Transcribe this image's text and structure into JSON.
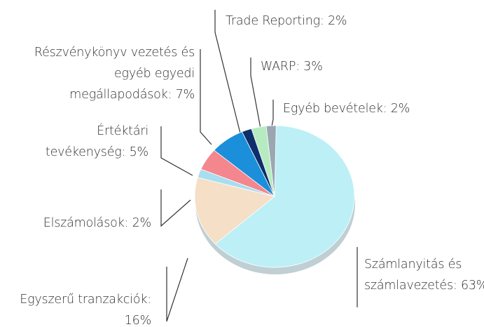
{
  "chart_data": {
    "type": "pie",
    "labels": [
      "Számlanyitás és számlavezetés: 63%",
      "Egyszerű tranzakciók: 16%",
      "Elszámolások: 2%",
      "Értéktári tevékenység: 5%",
      "Részvénykönyv vezetés és egyéb egyedi megállapodások: 7%",
      "Trade Reporting: 2%",
      "WARP: 3%",
      "Egyéb bevételek: 2%"
    ],
    "values": [
      63,
      16,
      2,
      5,
      7,
      2,
      3,
      2
    ],
    "colors": [
      "#bdeff6",
      "#f5dfc6",
      "#a8def0",
      "#f4868e",
      "#1b8fd9",
      "#0e2e6c",
      "#b6ebc2",
      "#9aa7b2"
    ]
  }
}
